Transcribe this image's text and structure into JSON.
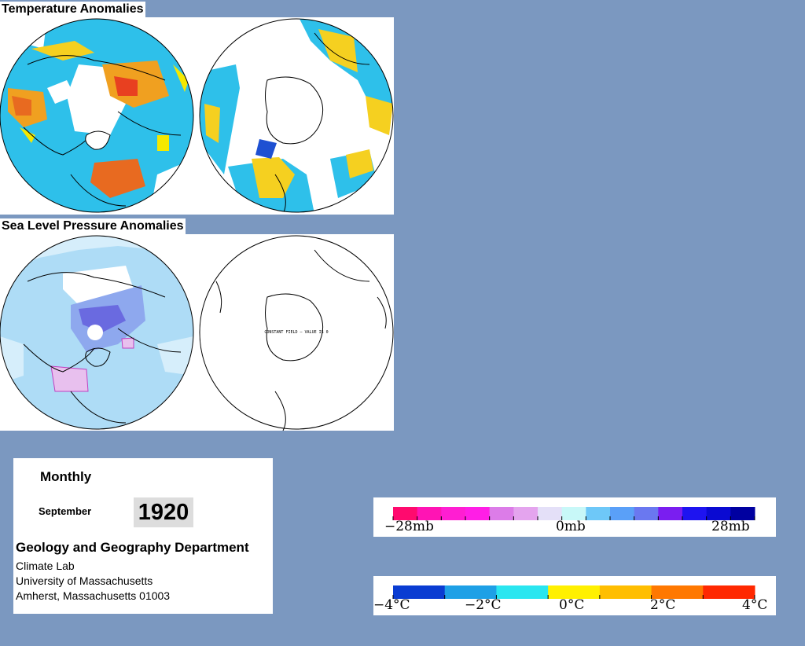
{
  "temperature": {
    "title": "Temperature Anomalies"
  },
  "pressure": {
    "title": "Sea Level Pressure Anomalies",
    "south_note": "CONSTANT FIELD — VALUE IS 0"
  },
  "info": {
    "period": "Monthly",
    "month": "September",
    "year": "1920",
    "department": "Geology and Geography Department",
    "lab": "Climate Lab",
    "university": "University of Massachusetts",
    "address": "Amherst, Massachusetts 01003"
  },
  "pressure_legend": {
    "labels": [
      "−28mb",
      "0mb",
      "28mb"
    ],
    "colors": [
      "#ff0a6e",
      "#ff14b4",
      "#ff1ed2",
      "#ff1ee6",
      "#dc7ce8",
      "#e4a4ee",
      "#e4e0f8",
      "#c8f8f8",
      "#6ec8f8",
      "#5aa0f8",
      "#6a78f0",
      "#7a1ef0",
      "#1e14f0",
      "#0a0ad2",
      "#0000a0"
    ]
  },
  "temperature_legend": {
    "labels": [
      "−4°C",
      "−2°C",
      "0°C",
      "2°C",
      "4°C"
    ],
    "colors": [
      "#0a3cd2",
      "#1ea0e6",
      "#2ae6f0",
      "#fff000",
      "#ffbe00",
      "#ff7800",
      "#ff2800"
    ]
  }
}
